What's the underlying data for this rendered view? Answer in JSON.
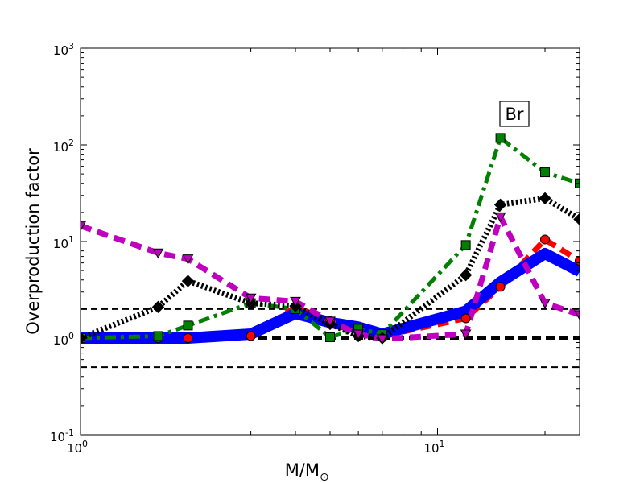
{
  "chart_data": {
    "type": "line",
    "annotation": "Br",
    "xlabel": "M/M",
    "xlabel_symbol": "⊙",
    "ylabel": "Overproduction factor",
    "xscale": "log",
    "yscale": "log",
    "xlim": [
      1,
      25
    ],
    "ylim": [
      0.1,
      1000
    ],
    "x_ticks": [
      {
        "value": 1,
        "base": "10",
        "exp": "0"
      },
      {
        "value": 10,
        "base": "10",
        "exp": "1"
      }
    ],
    "y_ticks": [
      {
        "value": 0.1,
        "base": "10",
        "exp": "-1"
      },
      {
        "value": 1,
        "base": "10",
        "exp": "0"
      },
      {
        "value": 10,
        "base": "10",
        "exp": "1"
      },
      {
        "value": 100,
        "base": "10",
        "exp": "2"
      },
      {
        "value": 1000,
        "base": "10",
        "exp": "3"
      }
    ],
    "reference_lines": [
      {
        "y": 0.5,
        "style": "dashed",
        "color": "#000000"
      },
      {
        "y": 1,
        "style": "dashed-thick",
        "color": "#000000"
      },
      {
        "y": 2,
        "style": "dashed",
        "color": "#000000"
      }
    ],
    "series": [
      {
        "color": "#ff0000",
        "dash": "dashed",
        "marker": "circle",
        "x": [
          1,
          1.65,
          2,
          3,
          4,
          5,
          6,
          7,
          12,
          15,
          20,
          25
        ],
        "y": [
          1.0,
          1.0,
          1.0,
          1.05,
          2.1,
          1.5,
          1.2,
          1.05,
          1.6,
          3.4,
          10.5,
          6.3
        ]
      },
      {
        "color": "#0000ff",
        "dash": "solid",
        "marker": "none",
        "x": [
          1,
          1.65,
          2,
          3,
          4,
          5,
          6,
          7,
          12,
          15,
          20,
          25
        ],
        "y": [
          1.0,
          1.0,
          1.0,
          1.1,
          1.8,
          1.45,
          1.3,
          1.1,
          1.9,
          3.8,
          7.5,
          4.9
        ]
      },
      {
        "color": "#008000",
        "dash": "dashdot",
        "marker": "square",
        "x": [
          1,
          1.65,
          2,
          3,
          4,
          5,
          6,
          7,
          12,
          15,
          20,
          25
        ],
        "y": [
          1.0,
          1.05,
          1.35,
          2.3,
          2.0,
          1.02,
          1.25,
          1.1,
          9.2,
          118,
          52,
          40
        ]
      },
      {
        "color": "#000000",
        "dash": "dotted",
        "marker": "diamond",
        "x": [
          1,
          1.65,
          2,
          3,
          4,
          5,
          6,
          7,
          12,
          15,
          20,
          25
        ],
        "y": [
          1.0,
          2.1,
          3.9,
          2.3,
          2.15,
          1.4,
          1.05,
          1.0,
          4.5,
          24,
          28,
          17
        ]
      },
      {
        "color": "#bf00bf",
        "dash": "dashed",
        "marker": "triangle-down",
        "x": [
          1,
          1.65,
          2,
          3,
          4,
          5,
          6,
          7,
          12,
          15,
          20,
          25
        ],
        "y": [
          14.5,
          7.6,
          6.6,
          2.6,
          2.4,
          1.5,
          1.1,
          0.98,
          1.1,
          18,
          2.3,
          1.75
        ]
      }
    ]
  }
}
